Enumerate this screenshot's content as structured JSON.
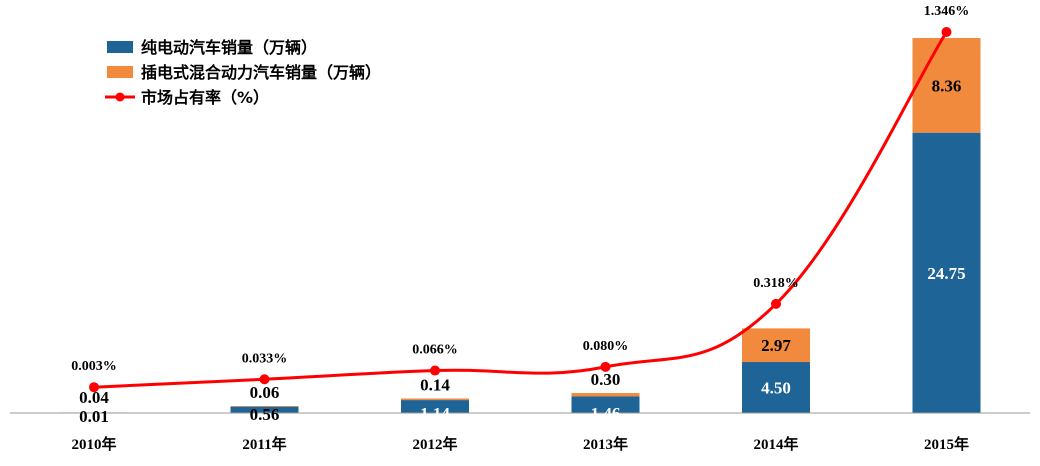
{
  "chart_data": {
    "type": "bar",
    "stacked": true,
    "categories": [
      "2010年",
      "2011年",
      "2012年",
      "2013年",
      "2014年",
      "2015年"
    ],
    "series": [
      {
        "name": "纯电动汽车销量（万辆）",
        "kind": "bar",
        "color": "#1F6496",
        "values": [
          0.01,
          0.56,
          1.14,
          1.46,
          4.5,
          24.75
        ],
        "labels": [
          "0.01",
          "0.56",
          "1.14",
          "1.46",
          "4.50",
          "24.75"
        ]
      },
      {
        "name": "插电式混合动力汽车销量（万辆）",
        "kind": "bar",
        "color": "#F28A3E",
        "values": [
          0.04,
          0.06,
          0.14,
          0.3,
          2.97,
          8.36
        ],
        "labels": [
          "0.04",
          "0.06",
          "0.14",
          "0.30",
          "2.97",
          "8.36"
        ]
      },
      {
        "name": "市场占有率（%）",
        "kind": "line",
        "color": "#FF0000",
        "values": [
          0.003,
          0.033,
          0.066,
          0.08,
          0.318,
          1.346
        ],
        "labels": [
          "0.003%",
          "0.033%",
          "0.066%",
          "0.080%",
          "0.318%",
          "1.346%"
        ]
      }
    ],
    "xlabel": "",
    "ylabel": "",
    "grid": false,
    "legend_position": "top-left"
  }
}
